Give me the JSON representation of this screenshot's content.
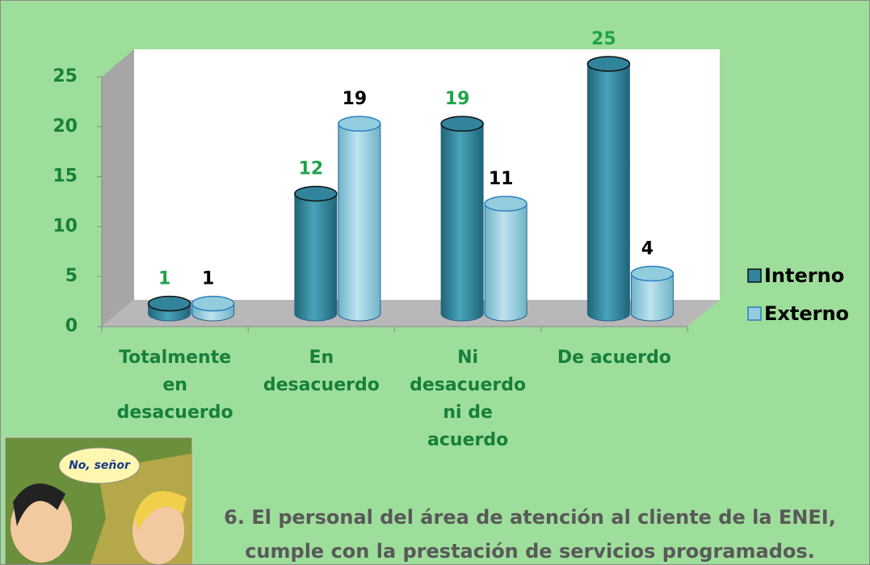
{
  "chart_data": {
    "type": "bar3d",
    "title": "6. El personal del área de atención al cliente de la ENEI,\ncumple con la prestación de servicios programados.",
    "categories": [
      "Totalmente en desacuerdo",
      "En desacuerdo",
      "Ni desacuerdo ni de acuerdo",
      "De acuerdo"
    ],
    "series": [
      {
        "name": "Interno",
        "color": "#31849b",
        "label_color": "#20a34a",
        "values": [
          1,
          12,
          19,
          25
        ]
      },
      {
        "name": "Externo",
        "color": "#93cddd",
        "label_color": "#000000",
        "values": [
          1,
          19,
          11,
          4
        ]
      }
    ],
    "ylim": [
      0,
      25
    ],
    "yticks": [
      0,
      5,
      10,
      15,
      20,
      25
    ],
    "grid": false,
    "legend": "right",
    "annotations": [
      "No, señor"
    ]
  }
}
